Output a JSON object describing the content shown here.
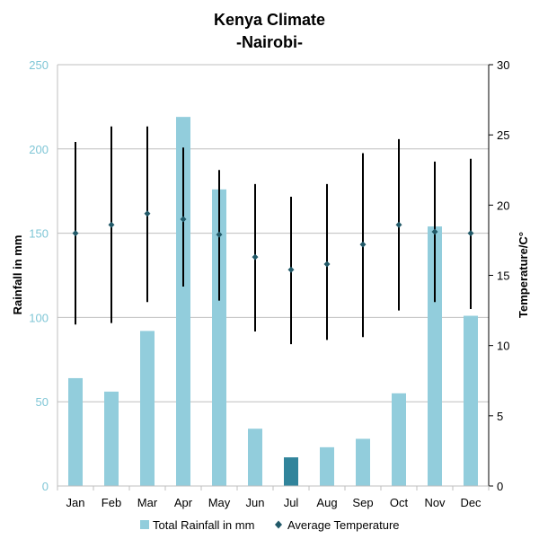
{
  "chart_data": {
    "type": "bar",
    "title": "Kenya Climate",
    "subtitle": "-Nairobi-",
    "categories": [
      "Jan",
      "Feb",
      "Mar",
      "Apr",
      "May",
      "Jun",
      "Jul",
      "Aug",
      "Sep",
      "Oct",
      "Nov",
      "Dec"
    ],
    "ylabel_left": "Rainfall in mm",
    "ylabel_right": "Temperature/C°",
    "ylim_left": [
      0,
      250
    ],
    "yticks_left": [
      0,
      50,
      100,
      150,
      200,
      250
    ],
    "ylim_right": [
      0,
      30
    ],
    "yticks_right": [
      0,
      5,
      10,
      15,
      20,
      25,
      30
    ],
    "grid": true,
    "legend_position": "bottom",
    "series": [
      {
        "name": "Total Rainfall in mm",
        "type": "bar",
        "axis": "left",
        "color": "#92cddc",
        "highlight_color": "#31849b",
        "highlight_index": 6,
        "values": [
          64,
          56,
          92,
          219,
          176,
          34,
          17,
          23,
          28,
          55,
          154,
          101
        ]
      },
      {
        "name": "Average Temperature",
        "type": "scatter",
        "axis": "right",
        "color": "#215968",
        "values": [
          18.0,
          18.6,
          19.4,
          19.0,
          17.9,
          16.3,
          15.4,
          15.8,
          17.2,
          18.6,
          18.1,
          18.0
        ],
        "error_low": [
          11.5,
          11.6,
          13.1,
          14.2,
          13.2,
          11.0,
          10.1,
          10.4,
          10.6,
          12.5,
          13.1,
          12.6
        ],
        "error_high": [
          24.5,
          25.6,
          25.6,
          24.1,
          22.5,
          21.5,
          20.6,
          21.5,
          23.7,
          24.7,
          23.1,
          23.3
        ]
      }
    ]
  }
}
